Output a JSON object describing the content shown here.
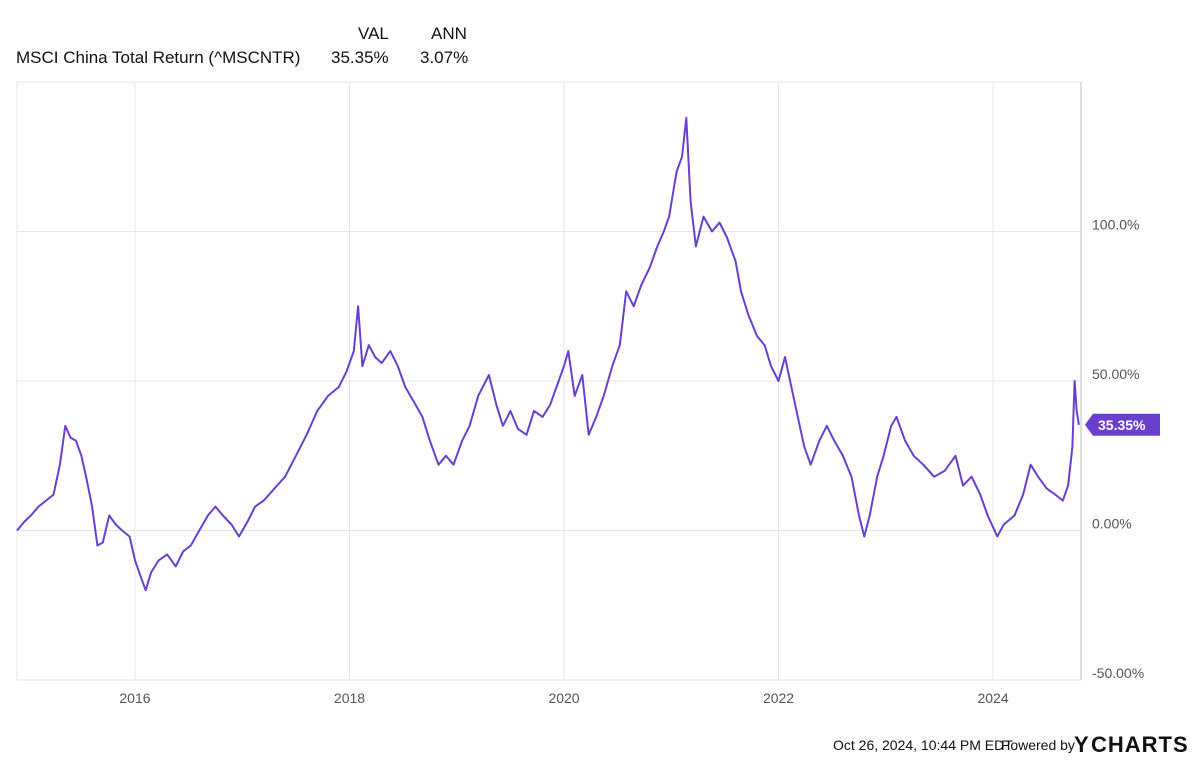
{
  "header": {
    "col_val": "VAL",
    "col_ann": "ANN",
    "series_label": "MSCI China Total Return (^MSCNTR)",
    "series_val": "35.35%",
    "series_ann": "3.07%"
  },
  "footer": {
    "timestamp": "Oct 26, 2024, 10:44 PM EDT",
    "powered_by": "Powered by",
    "brand_y": "Y",
    "brand_rest": "CHARTS"
  },
  "colors": {
    "line": "#6a3fcf",
    "grid": "#e6e6e6",
    "axis": "#bbbbbb",
    "badge": "#6a3fcf",
    "brand_accent": "#2a7fd4"
  },
  "chart_data": {
    "type": "line",
    "title": "",
    "xlabel": "",
    "ylabel": "",
    "x_range": [
      2014.9,
      2024.82
    ],
    "ylim": [
      -50,
      150
    ],
    "grid": true,
    "x_ticks": [
      {
        "value": 2016,
        "label": "2016"
      },
      {
        "value": 2018,
        "label": "2018"
      },
      {
        "value": 2020,
        "label": "2020"
      },
      {
        "value": 2022,
        "label": "2022"
      },
      {
        "value": 2024,
        "label": "2024"
      }
    ],
    "y_ticks": [
      {
        "value": 100,
        "label": "100.0%"
      },
      {
        "value": 50,
        "label": "50.00%"
      },
      {
        "value": 0,
        "label": "0.00%"
      },
      {
        "value": -50,
        "label": "-50.00%"
      }
    ],
    "last_value_label": "35.35%",
    "series": [
      {
        "name": "MSCI China Total Return (^MSCNTR)",
        "points": [
          [
            2014.9,
            0
          ],
          [
            2014.97,
            3
          ],
          [
            2015.03,
            5
          ],
          [
            2015.1,
            8
          ],
          [
            2015.17,
            10
          ],
          [
            2015.24,
            12
          ],
          [
            2015.3,
            22
          ],
          [
            2015.35,
            35
          ],
          [
            2015.4,
            31
          ],
          [
            2015.45,
            30
          ],
          [
            2015.5,
            25
          ],
          [
            2015.55,
            17
          ],
          [
            2015.6,
            8
          ],
          [
            2015.65,
            -5
          ],
          [
            2015.7,
            -4
          ],
          [
            2015.76,
            5
          ],
          [
            2015.82,
            2
          ],
          [
            2015.88,
            0
          ],
          [
            2015.95,
            -2
          ],
          [
            2016.0,
            -10
          ],
          [
            2016.05,
            -15
          ],
          [
            2016.1,
            -20
          ],
          [
            2016.15,
            -14
          ],
          [
            2016.22,
            -10
          ],
          [
            2016.3,
            -8
          ],
          [
            2016.38,
            -12
          ],
          [
            2016.45,
            -7
          ],
          [
            2016.52,
            -5
          ],
          [
            2016.6,
            0
          ],
          [
            2016.68,
            5
          ],
          [
            2016.75,
            8
          ],
          [
            2016.82,
            5
          ],
          [
            2016.9,
            2
          ],
          [
            2016.97,
            -2
          ],
          [
            2017.05,
            3
          ],
          [
            2017.12,
            8
          ],
          [
            2017.2,
            10
          ],
          [
            2017.3,
            14
          ],
          [
            2017.4,
            18
          ],
          [
            2017.5,
            25
          ],
          [
            2017.6,
            32
          ],
          [
            2017.7,
            40
          ],
          [
            2017.8,
            45
          ],
          [
            2017.9,
            48
          ],
          [
            2017.97,
            53
          ],
          [
            2018.04,
            60
          ],
          [
            2018.08,
            75
          ],
          [
            2018.12,
            55
          ],
          [
            2018.18,
            62
          ],
          [
            2018.24,
            58
          ],
          [
            2018.3,
            56
          ],
          [
            2018.38,
            60
          ],
          [
            2018.45,
            55
          ],
          [
            2018.52,
            48
          ],
          [
            2018.6,
            43
          ],
          [
            2018.68,
            38
          ],
          [
            2018.75,
            30
          ],
          [
            2018.83,
            22
          ],
          [
            2018.9,
            25
          ],
          [
            2018.97,
            22
          ],
          [
            2019.05,
            30
          ],
          [
            2019.12,
            35
          ],
          [
            2019.2,
            45
          ],
          [
            2019.3,
            52
          ],
          [
            2019.37,
            42
          ],
          [
            2019.43,
            35
          ],
          [
            2019.5,
            40
          ],
          [
            2019.57,
            34
          ],
          [
            2019.65,
            32
          ],
          [
            2019.72,
            40
          ],
          [
            2019.8,
            38
          ],
          [
            2019.87,
            42
          ],
          [
            2019.93,
            48
          ],
          [
            2020.0,
            55
          ],
          [
            2020.04,
            60
          ],
          [
            2020.1,
            45
          ],
          [
            2020.17,
            52
          ],
          [
            2020.23,
            32
          ],
          [
            2020.3,
            38
          ],
          [
            2020.37,
            45
          ],
          [
            2020.45,
            55
          ],
          [
            2020.52,
            62
          ],
          [
            2020.58,
            80
          ],
          [
            2020.65,
            75
          ],
          [
            2020.72,
            82
          ],
          [
            2020.8,
            88
          ],
          [
            2020.87,
            95
          ],
          [
            2020.93,
            100
          ],
          [
            2020.98,
            105
          ],
          [
            2021.05,
            120
          ],
          [
            2021.1,
            125
          ],
          [
            2021.14,
            138
          ],
          [
            2021.18,
            110
          ],
          [
            2021.23,
            95
          ],
          [
            2021.3,
            105
          ],
          [
            2021.38,
            100
          ],
          [
            2021.45,
            103
          ],
          [
            2021.52,
            98
          ],
          [
            2021.6,
            90
          ],
          [
            2021.65,
            80
          ],
          [
            2021.72,
            72
          ],
          [
            2021.8,
            65
          ],
          [
            2021.87,
            62
          ],
          [
            2021.93,
            55
          ],
          [
            2022.0,
            50
          ],
          [
            2022.06,
            58
          ],
          [
            2022.12,
            48
          ],
          [
            2022.18,
            38
          ],
          [
            2022.24,
            28
          ],
          [
            2022.3,
            22
          ],
          [
            2022.38,
            30
          ],
          [
            2022.45,
            35
          ],
          [
            2022.52,
            30
          ],
          [
            2022.6,
            25
          ],
          [
            2022.68,
            18
          ],
          [
            2022.75,
            5
          ],
          [
            2022.8,
            -2
          ],
          [
            2022.85,
            5
          ],
          [
            2022.92,
            18
          ],
          [
            2022.98,
            25
          ],
          [
            2023.05,
            35
          ],
          [
            2023.1,
            38
          ],
          [
            2023.18,
            30
          ],
          [
            2023.26,
            25
          ],
          [
            2023.35,
            22
          ],
          [
            2023.45,
            18
          ],
          [
            2023.55,
            20
          ],
          [
            2023.65,
            25
          ],
          [
            2023.72,
            15
          ],
          [
            2023.8,
            18
          ],
          [
            2023.88,
            12
          ],
          [
            2023.95,
            5
          ],
          [
            2024.04,
            -2
          ],
          [
            2024.1,
            2
          ],
          [
            2024.2,
            5
          ],
          [
            2024.28,
            12
          ],
          [
            2024.35,
            22
          ],
          [
            2024.42,
            18
          ],
          [
            2024.5,
            14
          ],
          [
            2024.58,
            12
          ],
          [
            2024.65,
            10
          ],
          [
            2024.7,
            15
          ],
          [
            2024.74,
            28
          ],
          [
            2024.76,
            50
          ],
          [
            2024.78,
            40
          ],
          [
            2024.8,
            35.35
          ]
        ]
      }
    ]
  }
}
